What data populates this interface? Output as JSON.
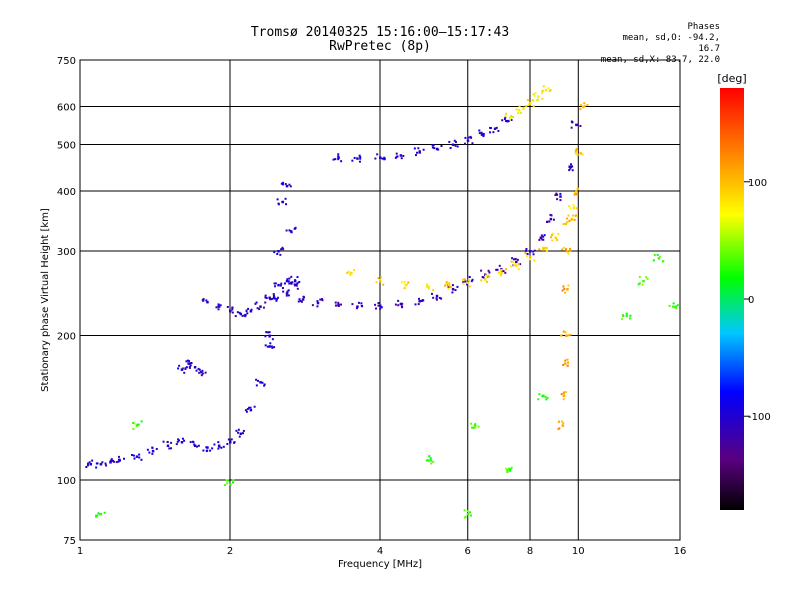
{
  "title": "Tromsø 20140325 15:16:00–15:17:43",
  "subtitle": "RwPretec (8p)",
  "stats": {
    "heading": "Phases",
    "line_o": "mean, sd,O: -94.2, 16.7",
    "line_x": "mean, sd,X:  83.7, 22.0"
  },
  "chart_data": {
    "type": "scatter",
    "xlabel": "Frequency [MHz]",
    "ylabel": "Stationary phase Virtual Height [km]",
    "xscale": "log",
    "yscale": "log",
    "xlim": [
      1,
      16
    ],
    "ylim": [
      75,
      750
    ],
    "xticks": [
      1,
      2,
      4,
      6,
      8,
      10,
      16
    ],
    "yticks": [
      75,
      100,
      200,
      300,
      400,
      500,
      600,
      750
    ],
    "colorbar": {
      "label": "[deg]",
      "range": [
        -180,
        180
      ],
      "ticks": [
        100,
        0,
        -100
      ]
    },
    "grid": true,
    "point_color_values": "phase in degrees",
    "series": [
      {
        "x": [
          1.05,
          1.1,
          1.15,
          1.2,
          1.3,
          1.4,
          1.5,
          1.6,
          1.7,
          1.8,
          1.9,
          2.0,
          2.1,
          2.2,
          2.3,
          2.4
        ],
        "y": [
          108,
          108,
          109,
          110,
          112,
          115,
          118,
          120,
          118,
          117,
          118,
          120,
          125,
          140,
          160,
          190
        ],
        "phase": -100
      },
      {
        "x": [
          1.6,
          1.65,
          1.7,
          1.75
        ],
        "y": [
          170,
          175,
          172,
          168
        ],
        "phase": -100
      },
      {
        "x": [
          1.8,
          1.9,
          2.0,
          2.1,
          2.2,
          2.3,
          2.4,
          2.5,
          2.6,
          2.7
        ],
        "y": [
          235,
          230,
          225,
          222,
          225,
          230,
          240,
          255,
          260,
          255
        ],
        "phase": -105
      },
      {
        "x": [
          2.4,
          2.45,
          2.5,
          2.55,
          2.6,
          2.65,
          2.7
        ],
        "y": [
          200,
          240,
          300,
          380,
          410,
          330,
          260
        ],
        "phase": -100
      },
      {
        "x": [
          2.6,
          2.8,
          3.0,
          3.3,
          3.6,
          4.0,
          4.4,
          4.8,
          5.2,
          5.6,
          6.0,
          6.5,
          7.0,
          7.5,
          8.0,
          8.4,
          8.8,
          9.2,
          9.6,
          9.9
        ],
        "y": [
          245,
          238,
          234,
          232,
          230,
          231,
          233,
          236,
          242,
          250,
          260,
          268,
          275,
          285,
          300,
          320,
          350,
          390,
          450,
          550
        ],
        "phase": -110
      },
      {
        "x": [
          3.3,
          3.6,
          4.0,
          4.4,
          4.8,
          5.2,
          5.6,
          6.0,
          6.4,
          6.8,
          7.2
        ],
        "y": [
          470,
          468,
          470,
          475,
          482,
          490,
          500,
          510,
          525,
          540,
          560
        ],
        "phase": -100
      },
      {
        "x": [
          3.5,
          4.0,
          4.5,
          5.0,
          5.5,
          6.0,
          6.5,
          7.0,
          7.5,
          8.0,
          8.5,
          9.0,
          9.5,
          9.8
        ],
        "y": [
          270,
          260,
          255,
          253,
          255,
          258,
          262,
          270,
          280,
          292,
          305,
          320,
          345,
          370
        ],
        "phase": 90
      },
      {
        "x": [
          7.3,
          7.6,
          8.0,
          8.3,
          8.6
        ],
        "y": [
          570,
          590,
          610,
          630,
          650
        ],
        "phase": 80
      },
      {
        "x": [
          9.5,
          9.7,
          9.9,
          10.1,
          10.2
        ],
        "y": [
          300,
          350,
          400,
          480,
          600
        ],
        "phase": 100
      },
      {
        "x": [
          9.3,
          9.35,
          9.4,
          9.45,
          9.5
        ],
        "y": [
          130,
          150,
          175,
          200,
          250
        ],
        "phase": 110
      },
      {
        "x": [
          1.1,
          1.3,
          2.0,
          5.0,
          6.0,
          6.2,
          7.2,
          8.5,
          12.5,
          13.5,
          14.5,
          15.5
        ],
        "y": [
          85,
          130,
          98,
          110,
          85,
          130,
          105,
          150,
          220,
          260,
          290,
          230
        ],
        "phase": 30
      }
    ]
  }
}
